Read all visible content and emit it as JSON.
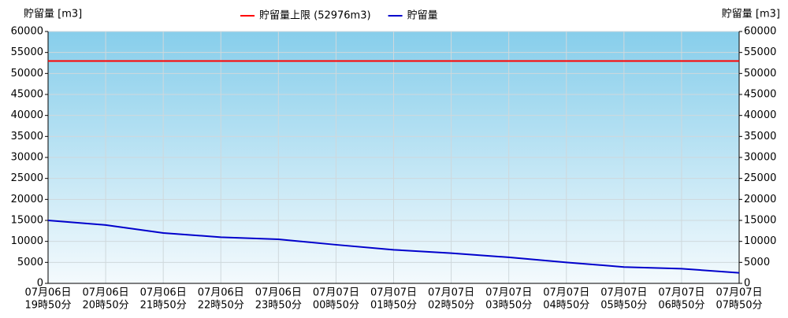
{
  "chart_data": {
    "type": "line",
    "ylabel": "貯留量 [m3]",
    "y2label": "貯留量 [m3]",
    "categories": [
      [
        "07月06日",
        "19時50分"
      ],
      [
        "07月06日",
        "20時50分"
      ],
      [
        "07月06日",
        "21時50分"
      ],
      [
        "07月06日",
        "22時50分"
      ],
      [
        "07月06日",
        "23時50分"
      ],
      [
        "07月07日",
        "00時50分"
      ],
      [
        "07月07日",
        "01時50分"
      ],
      [
        "07月07日",
        "02時50分"
      ],
      [
        "07月07日",
        "03時50分"
      ],
      [
        "07月07日",
        "04時50分"
      ],
      [
        "07月07日",
        "05時50分"
      ],
      [
        "07月07日",
        "06時50分"
      ],
      [
        "07月07日",
        "07時50分"
      ]
    ],
    "series": [
      {
        "name": "貯留量上限 (52976m3)",
        "color": "#ff0000",
        "values": [
          52976,
          52976,
          52976,
          52976,
          52976,
          52976,
          52976,
          52976,
          52976,
          52976,
          52976,
          52976,
          52976
        ]
      },
      {
        "name": "貯留量",
        "color": "#0000cc",
        "values": [
          15000,
          13900,
          12000,
          11000,
          10500,
          9200,
          8000,
          7200,
          6200,
          5000,
          3900,
          3500,
          2500
        ]
      }
    ],
    "ylim": [
      0,
      60000
    ],
    "yticks": [
      0,
      5000,
      10000,
      15000,
      20000,
      25000,
      30000,
      35000,
      40000,
      45000,
      50000,
      55000,
      60000
    ],
    "y2lim": [
      0,
      60000
    ],
    "y2ticks": [
      0,
      5000,
      10000,
      15000,
      20000,
      25000,
      30000,
      35000,
      40000,
      45000,
      50000,
      55000,
      60000
    ],
    "grid": true
  }
}
